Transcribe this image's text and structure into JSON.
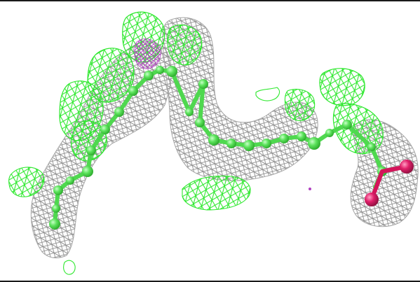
{
  "scene": {
    "background": "#ffffff",
    "density_mesh_color": "#9a9a9a",
    "difference_mesh_color": "#33ee33",
    "ligand_carbon_color": "#55e055",
    "oxygen_color": "#d4145a",
    "minor_density_color": "#b040c0"
  }
}
